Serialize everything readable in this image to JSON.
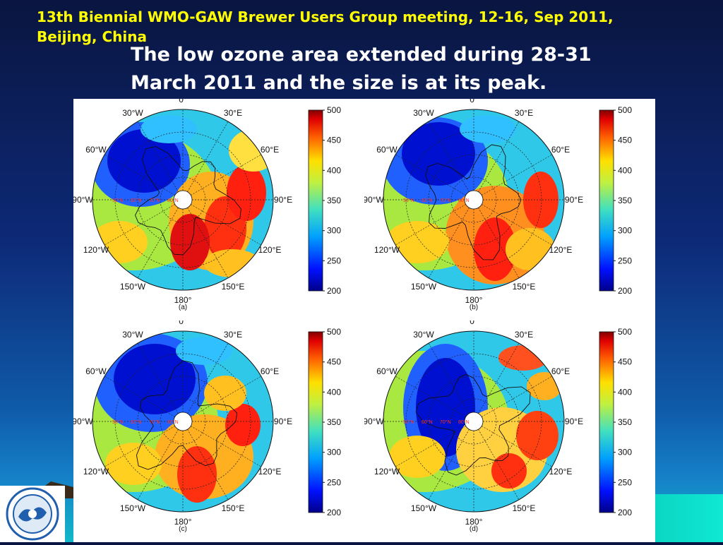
{
  "header": {
    "line1": "13th Biennial WMO-GAW Brewer Users Group meeting, 12-16, Sep 2011,",
    "line2": "Beijing, China"
  },
  "title": {
    "line1": "The low ozone area extended during 28-31",
    "line2": "March 2011 and the size is at its peak."
  },
  "map_labels": {
    "lon_top": "0°",
    "lon_30e": "30°E",
    "lon_30w": "30°W",
    "lon_60e": "60°E",
    "lon_60w": "60°W",
    "lon_90e": "90°E",
    "lon_90w": "90°W",
    "lon_120e": "120°E",
    "lon_120w": "120°W",
    "lon_150e": "150°E",
    "lon_150w": "150°W",
    "lon_bottom": "180°",
    "lat_rings": [
      "50°N",
      "60°N",
      "70°N",
      "80°N"
    ]
  },
  "colorbar": {
    "ticks": [
      "500",
      "450",
      "400",
      "350",
      "300",
      "250",
      "200"
    ],
    "range": [
      200,
      500
    ]
  },
  "panels": [
    {
      "caption": "(a)"
    },
    {
      "caption": "(b)"
    },
    {
      "caption": "(c)"
    },
    {
      "caption": "(d)"
    }
  ],
  "colors": {
    "header_text": "#ffff00",
    "title_text": "#ffffff"
  }
}
